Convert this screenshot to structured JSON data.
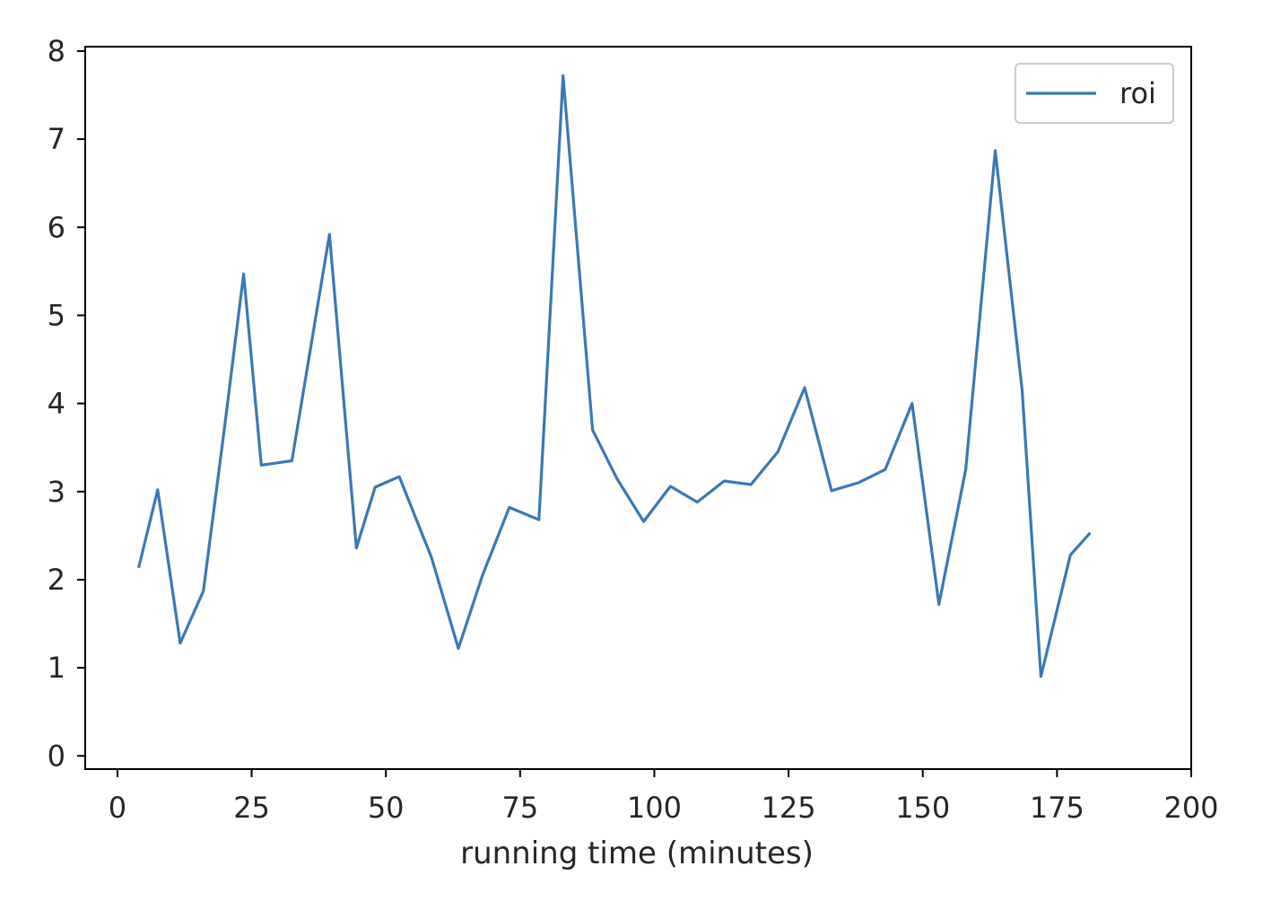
{
  "chart_data": {
    "type": "line",
    "title": "",
    "xlabel": "running time (minutes)",
    "ylabel": "",
    "xlim": [
      -6,
      200
    ],
    "ylim": [
      -0.15,
      8.05
    ],
    "x_ticks": [
      0,
      25,
      50,
      75,
      100,
      125,
      150,
      175,
      200
    ],
    "y_ticks": [
      0,
      1,
      2,
      3,
      4,
      5,
      6,
      7,
      8
    ],
    "grid": false,
    "legend": {
      "position": "top-right"
    },
    "series": [
      {
        "name": "roi",
        "color": "#3a78b4",
        "x": [
          4,
          7.5,
          11.7,
          16,
          20,
          23.5,
          26.8,
          32.5,
          39.5,
          44.5,
          48,
          52.5,
          58.5,
          63.5,
          68,
          73,
          78.5,
          83,
          88.5,
          93,
          98,
          103,
          108,
          113,
          118,
          123,
          128,
          133,
          138,
          143,
          148,
          153,
          158,
          163.5,
          168.5,
          172,
          177.5,
          181
        ],
        "y": [
          2.15,
          3.02,
          1.28,
          1.87,
          3.75,
          5.47,
          3.3,
          3.35,
          5.92,
          2.36,
          3.05,
          3.17,
          2.25,
          1.22,
          2.05,
          2.82,
          2.68,
          7.72,
          3.7,
          3.15,
          2.66,
          3.06,
          2.88,
          3.12,
          3.08,
          3.45,
          4.18,
          3.01,
          3.1,
          3.25,
          4.0,
          1.72,
          3.25,
          6.87,
          4.15,
          0.9,
          2.28,
          2.52
        ]
      }
    ]
  }
}
